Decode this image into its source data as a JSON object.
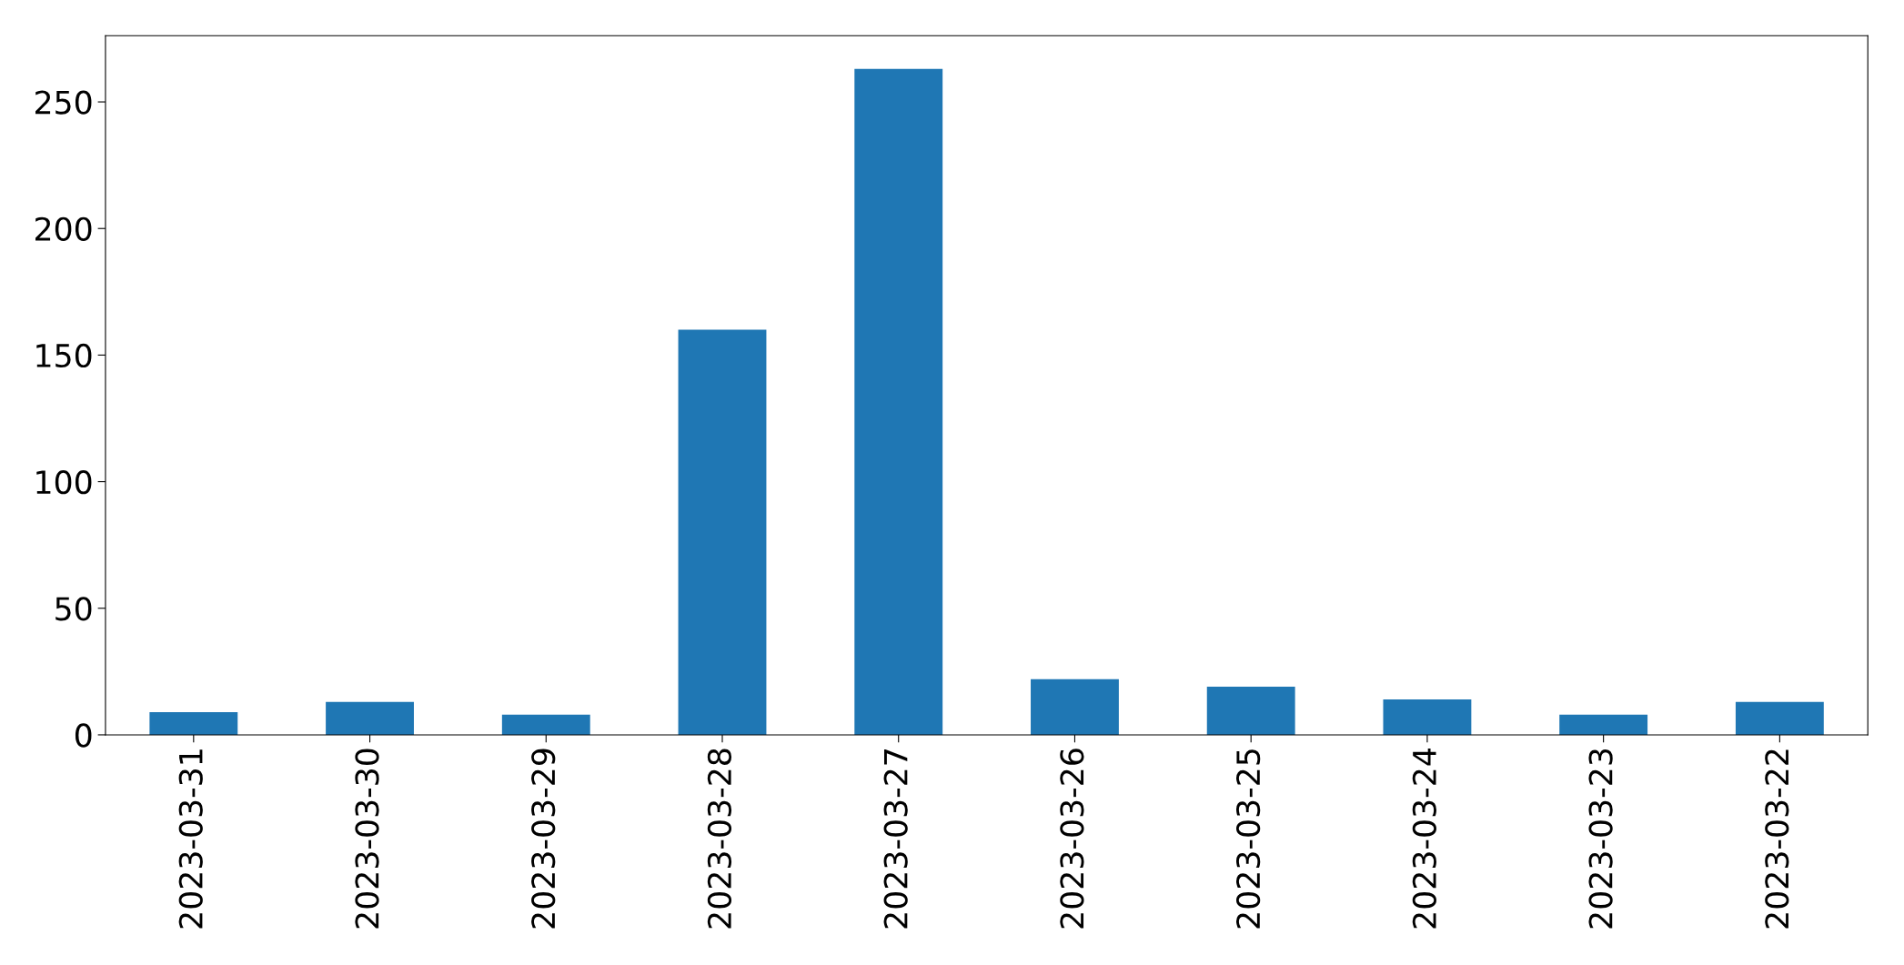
{
  "chart_data": {
    "type": "bar",
    "categories": [
      "2023-03-31",
      "2023-03-30",
      "2023-03-29",
      "2023-03-28",
      "2023-03-27",
      "2023-03-26",
      "2023-03-25",
      "2023-03-24",
      "2023-03-23",
      "2023-03-22"
    ],
    "values": [
      9,
      13,
      8,
      160,
      263,
      22,
      19,
      14,
      8,
      13
    ],
    "color": "#1f77b4",
    "ylim": [
      0,
      276.15
    ],
    "yticks": [
      0,
      50,
      100,
      150,
      200,
      250
    ],
    "grid": false,
    "legend": false
  }
}
